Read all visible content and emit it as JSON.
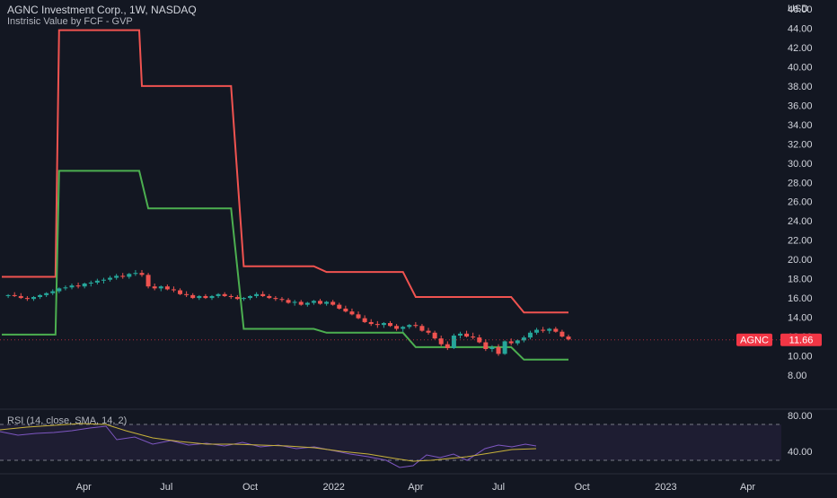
{
  "header": {
    "title": "AGNC Investment Corp., 1W, NASDAQ",
    "indicator": "Instrisic Value by FCF - GVP",
    "rsi_label": "RSI (14, close, SMA, 14, 2)"
  },
  "price_axis": {
    "currency": "USD",
    "ticks": [
      "46.00",
      "44.00",
      "42.00",
      "40.00",
      "38.00",
      "36.00",
      "34.00",
      "32.00",
      "30.00",
      "28.00",
      "26.00",
      "24.00",
      "22.00",
      "20.00",
      "18.00",
      "16.00",
      "14.00",
      "12.00",
      "10.00",
      "8.00"
    ]
  },
  "rsi_axis": {
    "ticks": [
      "80.00",
      "40.00"
    ]
  },
  "symbol_tag": {
    "symbol": "AGNC",
    "price": "11.66"
  },
  "time_axis": {
    "labels": [
      "Apr",
      "Jul",
      "Oct",
      "2022",
      "Apr",
      "Jul",
      "Oct",
      "2023",
      "Apr"
    ]
  },
  "colors": {
    "background": "#131722",
    "upper_line": "#f05350",
    "lower_line": "#4caf50",
    "candle_up": "#26a69a",
    "candle_down": "#ef5350",
    "rsi": "#7e57c2",
    "rsi_ma": "#c9b33a",
    "tag": "#f23645"
  },
  "chart_data": {
    "type": "line",
    "y_range": [
      7,
      47
    ],
    "series": [
      {
        "name": "",
        "kind": "upper-intrinsic-value",
        "points": [
          [
            "2021-01-01",
            18.2
          ],
          [
            "2021-03-01",
            18.2
          ],
          [
            "2021-03-05",
            43.8
          ],
          [
            "2021-06-01",
            43.8
          ],
          [
            "2021-06-04",
            38.0
          ],
          [
            "2021-09-10",
            38.0
          ],
          [
            "2021-09-24",
            19.3
          ],
          [
            "2021-12-10",
            19.3
          ],
          [
            "2021-12-24",
            18.7
          ],
          [
            "2022-03-18",
            18.7
          ],
          [
            "2022-04-01",
            16.1
          ],
          [
            "2022-07-15",
            16.1
          ],
          [
            "2022-07-29",
            14.5
          ],
          [
            "2022-09-16",
            14.5
          ]
        ]
      },
      {
        "name": "",
        "kind": "lower-intrinsic-value",
        "points": [
          [
            "2021-01-01",
            12.2
          ],
          [
            "2021-03-01",
            12.2
          ],
          [
            "2021-03-05",
            29.2
          ],
          [
            "2021-06-01",
            29.2
          ],
          [
            "2021-06-11",
            25.3
          ],
          [
            "2021-09-10",
            25.3
          ],
          [
            "2021-09-24",
            12.8
          ],
          [
            "2021-12-10",
            12.8
          ],
          [
            "2021-12-24",
            12.4
          ],
          [
            "2022-03-18",
            12.4
          ],
          [
            "2022-04-01",
            10.9
          ],
          [
            "2022-07-15",
            10.9
          ],
          [
            "2022-07-29",
            9.6
          ],
          [
            "2022-09-16",
            9.6
          ]
        ]
      }
    ],
    "candles": [
      [
        "2021-01-08",
        16.2,
        16.4,
        16.0,
        16.3
      ],
      [
        "2021-01-15",
        16.3,
        16.6,
        16.1,
        16.2
      ],
      [
        "2021-01-22",
        16.2,
        16.5,
        15.9,
        16.0
      ],
      [
        "2021-01-29",
        16.0,
        16.2,
        15.7,
        15.9
      ],
      [
        "2021-02-05",
        15.9,
        16.2,
        15.7,
        16.1
      ],
      [
        "2021-02-12",
        16.1,
        16.4,
        15.9,
        16.3
      ],
      [
        "2021-02-19",
        16.3,
        16.6,
        16.1,
        16.5
      ],
      [
        "2021-02-26",
        16.5,
        16.9,
        16.3,
        16.7
      ],
      [
        "2021-03-05",
        16.7,
        17.1,
        16.5,
        17.0
      ],
      [
        "2021-03-12",
        17.0,
        17.3,
        16.8,
        17.1
      ],
      [
        "2021-03-19",
        17.1,
        17.5,
        16.9,
        17.3
      ],
      [
        "2021-03-26",
        17.3,
        17.6,
        17.0,
        17.2
      ],
      [
        "2021-04-02",
        17.2,
        17.6,
        17.0,
        17.5
      ],
      [
        "2021-04-09",
        17.5,
        17.8,
        17.2,
        17.6
      ],
      [
        "2021-04-16",
        17.6,
        18.0,
        17.4,
        17.8
      ],
      [
        "2021-04-23",
        17.8,
        18.1,
        17.5,
        17.9
      ],
      [
        "2021-04-30",
        17.9,
        18.3,
        17.7,
        18.1
      ],
      [
        "2021-05-07",
        18.1,
        18.5,
        17.9,
        18.3
      ],
      [
        "2021-05-14",
        18.3,
        18.6,
        18.0,
        18.2
      ],
      [
        "2021-05-21",
        18.2,
        18.6,
        18.0,
        18.5
      ],
      [
        "2021-05-28",
        18.5,
        18.9,
        18.3,
        18.6
      ],
      [
        "2021-06-04",
        18.6,
        18.9,
        18.2,
        18.4
      ],
      [
        "2021-06-11",
        18.4,
        18.6,
        17.0,
        17.2
      ],
      [
        "2021-06-18",
        17.2,
        17.5,
        16.8,
        17.0
      ],
      [
        "2021-06-25",
        17.0,
        17.3,
        16.7,
        17.2
      ],
      [
        "2021-07-02",
        17.2,
        17.4,
        16.8,
        16.9
      ],
      [
        "2021-07-09",
        16.9,
        17.2,
        16.6,
        16.8
      ],
      [
        "2021-07-16",
        16.8,
        17.0,
        16.3,
        16.4
      ],
      [
        "2021-07-23",
        16.4,
        16.7,
        16.1,
        16.3
      ],
      [
        "2021-07-30",
        16.3,
        16.5,
        15.9,
        16.0
      ],
      [
        "2021-08-06",
        16.0,
        16.3,
        15.8,
        16.2
      ],
      [
        "2021-08-13",
        16.2,
        16.4,
        15.9,
        16.0
      ],
      [
        "2021-08-20",
        16.0,
        16.3,
        15.8,
        16.2
      ],
      [
        "2021-08-27",
        16.2,
        16.5,
        16.0,
        16.4
      ],
      [
        "2021-09-03",
        16.4,
        16.6,
        16.1,
        16.2
      ],
      [
        "2021-09-10",
        16.2,
        16.4,
        15.9,
        16.1
      ],
      [
        "2021-09-17",
        16.1,
        16.3,
        15.8,
        15.9
      ],
      [
        "2021-09-24",
        15.9,
        16.1,
        15.7,
        16.0
      ],
      [
        "2021-10-01",
        16.0,
        16.3,
        15.8,
        16.2
      ],
      [
        "2021-10-08",
        16.2,
        16.6,
        16.0,
        16.4
      ],
      [
        "2021-10-15",
        16.4,
        16.7,
        16.1,
        16.2
      ],
      [
        "2021-10-22",
        16.2,
        16.4,
        15.9,
        16.0
      ],
      [
        "2021-10-29",
        16.0,
        16.2,
        15.7,
        15.9
      ],
      [
        "2021-11-05",
        15.9,
        16.1,
        15.6,
        15.8
      ],
      [
        "2021-11-12",
        15.8,
        16.0,
        15.4,
        15.5
      ],
      [
        "2021-11-19",
        15.5,
        15.8,
        15.2,
        15.6
      ],
      [
        "2021-11-26",
        15.6,
        15.8,
        15.2,
        15.3
      ],
      [
        "2021-12-03",
        15.3,
        15.6,
        15.1,
        15.5
      ],
      [
        "2021-12-10",
        15.5,
        15.8,
        15.3,
        15.7
      ],
      [
        "2021-12-17",
        15.7,
        15.9,
        15.3,
        15.4
      ],
      [
        "2021-12-24",
        15.4,
        15.7,
        15.2,
        15.6
      ],
      [
        "2021-12-31",
        15.6,
        15.8,
        15.2,
        15.3
      ],
      [
        "2022-01-07",
        15.3,
        15.5,
        14.8,
        14.9
      ],
      [
        "2022-01-14",
        14.9,
        15.2,
        14.5,
        14.6
      ],
      [
        "2022-01-21",
        14.6,
        14.9,
        14.2,
        14.3
      ],
      [
        "2022-01-28",
        14.3,
        14.6,
        13.8,
        13.9
      ],
      [
        "2022-02-04",
        13.9,
        14.2,
        13.4,
        13.5
      ],
      [
        "2022-02-11",
        13.5,
        13.8,
        13.1,
        13.3
      ],
      [
        "2022-02-18",
        13.3,
        13.6,
        12.9,
        13.2
      ],
      [
        "2022-02-25",
        13.2,
        13.5,
        12.9,
        13.4
      ],
      [
        "2022-03-04",
        13.4,
        13.6,
        13.0,
        13.1
      ],
      [
        "2022-03-11",
        13.1,
        13.3,
        12.6,
        12.8
      ],
      [
        "2022-03-18",
        12.8,
        13.1,
        12.5,
        13.0
      ],
      [
        "2022-03-25",
        13.0,
        13.3,
        12.8,
        13.2
      ],
      [
        "2022-04-01",
        13.2,
        13.5,
        12.9,
        13.1
      ],
      [
        "2022-04-08",
        13.1,
        13.3,
        12.5,
        12.6
      ],
      [
        "2022-04-15",
        12.6,
        12.9,
        12.2,
        12.4
      ],
      [
        "2022-04-22",
        12.4,
        12.6,
        11.7,
        11.8
      ],
      [
        "2022-04-29",
        11.8,
        12.1,
        11.0,
        11.2
      ],
      [
        "2022-05-06",
        11.2,
        11.5,
        10.6,
        10.8
      ],
      [
        "2022-05-13",
        10.8,
        12.3,
        10.7,
        12.1
      ],
      [
        "2022-05-20",
        12.1,
        12.5,
        11.8,
        12.3
      ],
      [
        "2022-05-27",
        12.3,
        12.6,
        11.9,
        12.0
      ],
      [
        "2022-06-03",
        12.0,
        12.4,
        11.7,
        11.9
      ],
      [
        "2022-06-10",
        11.9,
        12.2,
        11.3,
        11.4
      ],
      [
        "2022-06-17",
        11.4,
        11.7,
        10.5,
        10.7
      ],
      [
        "2022-06-24",
        10.7,
        11.1,
        10.4,
        10.9
      ],
      [
        "2022-07-01",
        10.9,
        11.2,
        10.0,
        10.2
      ],
      [
        "2022-07-08",
        10.2,
        11.6,
        10.1,
        11.5
      ],
      [
        "2022-07-15",
        11.5,
        11.8,
        11.1,
        11.3
      ],
      [
        "2022-07-22",
        11.3,
        11.7,
        11.1,
        11.6
      ],
      [
        "2022-07-29",
        11.6,
        12.1,
        11.4,
        11.9
      ],
      [
        "2022-08-05",
        11.9,
        12.6,
        11.7,
        12.4
      ],
      [
        "2022-08-12",
        12.4,
        12.9,
        12.2,
        12.7
      ],
      [
        "2022-08-19",
        12.7,
        13.0,
        12.4,
        12.6
      ],
      [
        "2022-08-26",
        12.6,
        12.9,
        12.3,
        12.8
      ],
      [
        "2022-09-02",
        12.8,
        13.0,
        12.4,
        12.5
      ],
      [
        "2022-09-09",
        12.5,
        12.7,
        11.9,
        12.0
      ],
      [
        "2022-09-16",
        12.0,
        12.2,
        11.6,
        11.7
      ]
    ],
    "rsi": {
      "name": "RSI (14, close, SMA, 14, 2)",
      "range": [
        10,
        95
      ],
      "bands": [
        70,
        30
      ],
      "ticks": [
        80,
        40
      ],
      "values": [
        [
          0,
          62
        ],
        [
          20,
          58
        ],
        [
          40,
          60
        ],
        [
          60,
          61
        ],
        [
          80,
          63
        ],
        [
          100,
          66
        ],
        [
          118,
          68
        ],
        [
          130,
          53
        ],
        [
          150,
          56
        ],
        [
          170,
          48
        ],
        [
          190,
          52
        ],
        [
          210,
          47
        ],
        [
          230,
          49
        ],
        [
          250,
          46
        ],
        [
          270,
          50
        ],
        [
          290,
          45
        ],
        [
          310,
          47
        ],
        [
          330,
          43
        ],
        [
          350,
          45
        ],
        [
          370,
          41
        ],
        [
          390,
          37
        ],
        [
          410,
          34
        ],
        [
          430,
          30
        ],
        [
          445,
          22
        ],
        [
          460,
          24
        ],
        [
          475,
          36
        ],
        [
          490,
          33
        ],
        [
          505,
          37
        ],
        [
          520,
          30
        ],
        [
          540,
          43
        ],
        [
          555,
          47
        ],
        [
          570,
          45
        ],
        [
          585,
          48
        ],
        [
          597,
          46
        ]
      ],
      "ma": [
        [
          0,
          64
        ],
        [
          30,
          67
        ],
        [
          60,
          69
        ],
        [
          90,
          71
        ],
        [
          118,
          70
        ],
        [
          140,
          63
        ],
        [
          170,
          55
        ],
        [
          200,
          51
        ],
        [
          230,
          48
        ],
        [
          260,
          48
        ],
        [
          290,
          47
        ],
        [
          320,
          46
        ],
        [
          350,
          44
        ],
        [
          380,
          40
        ],
        [
          410,
          37
        ],
        [
          440,
          32
        ],
        [
          460,
          29
        ],
        [
          480,
          30
        ],
        [
          500,
          32
        ],
        [
          520,
          34
        ],
        [
          545,
          38
        ],
        [
          570,
          42
        ],
        [
          597,
          43
        ]
      ]
    },
    "x_axis_labels": [
      "Apr",
      "Jul",
      "Oct",
      "2022",
      "Apr",
      "Jul",
      "Oct",
      "2023",
      "Apr"
    ]
  }
}
